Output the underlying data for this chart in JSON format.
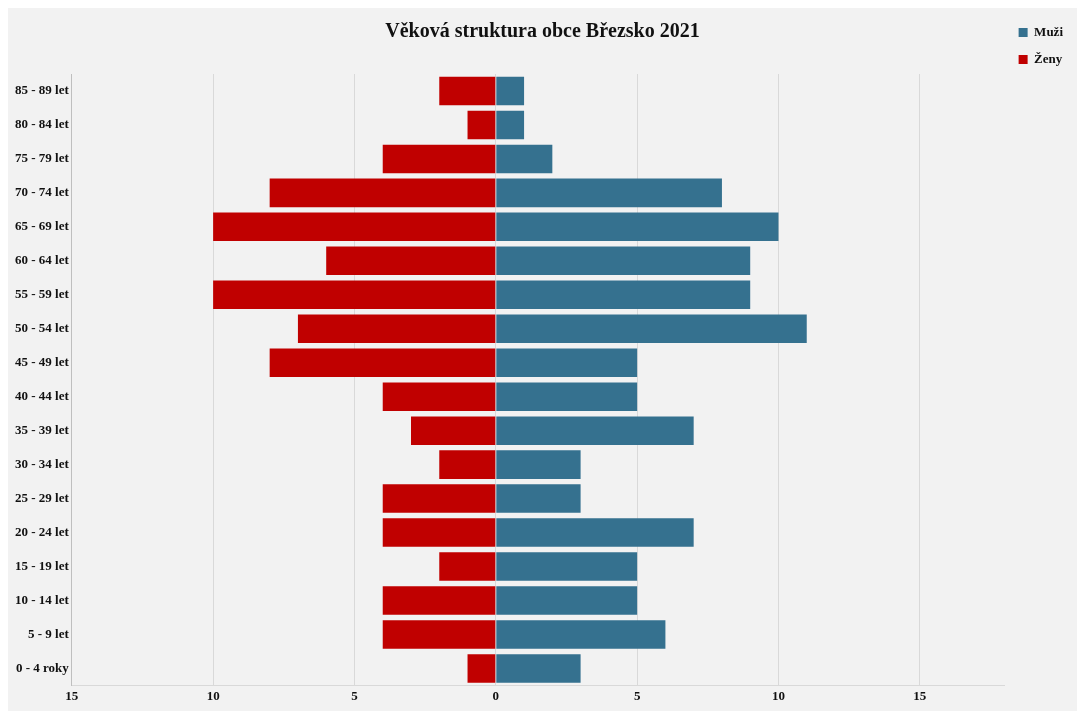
{
  "chart_data": {
    "type": "bar",
    "title": "Věková struktura obce Březsko 2021",
    "orientation": "horizontal",
    "stacked": true,
    "categories": [
      "85 - 89 let",
      "80 - 84 let",
      "75 - 79 let",
      "70 - 74 let",
      "65 - 69 let",
      "60 - 64 let",
      "55 - 59 let",
      "50 - 54 let",
      "45 - 49 let",
      "40 - 44 let",
      "35 - 39 let",
      "30 - 34 let",
      "25 - 29 let",
      "20 - 24 let",
      "15 - 19 let",
      "10 - 14 let",
      "5 - 9 let",
      "0 - 4 roky"
    ],
    "series": [
      {
        "name": "Muži",
        "color": "#35718f",
        "values": [
          1,
          1,
          2,
          8,
          10,
          9,
          9,
          11,
          5,
          5,
          7,
          3,
          3,
          7,
          5,
          5,
          6,
          3
        ]
      },
      {
        "name": "Ženy",
        "color": "#c00000",
        "values": [
          -2,
          -1,
          -4,
          -8,
          -10,
          -6,
          -10,
          -7,
          -8,
          -4,
          -3,
          -2,
          -4,
          -4,
          -2,
          -4,
          -4,
          -1
        ]
      }
    ],
    "xlim": [
      -15,
      18
    ],
    "xticks": [
      {
        "value": -15,
        "label": "15"
      },
      {
        "value": -10,
        "label": "10"
      },
      {
        "value": -5,
        "label": "5"
      },
      0,
      5,
      10,
      15
    ],
    "grid": "x",
    "legend": "top right"
  }
}
